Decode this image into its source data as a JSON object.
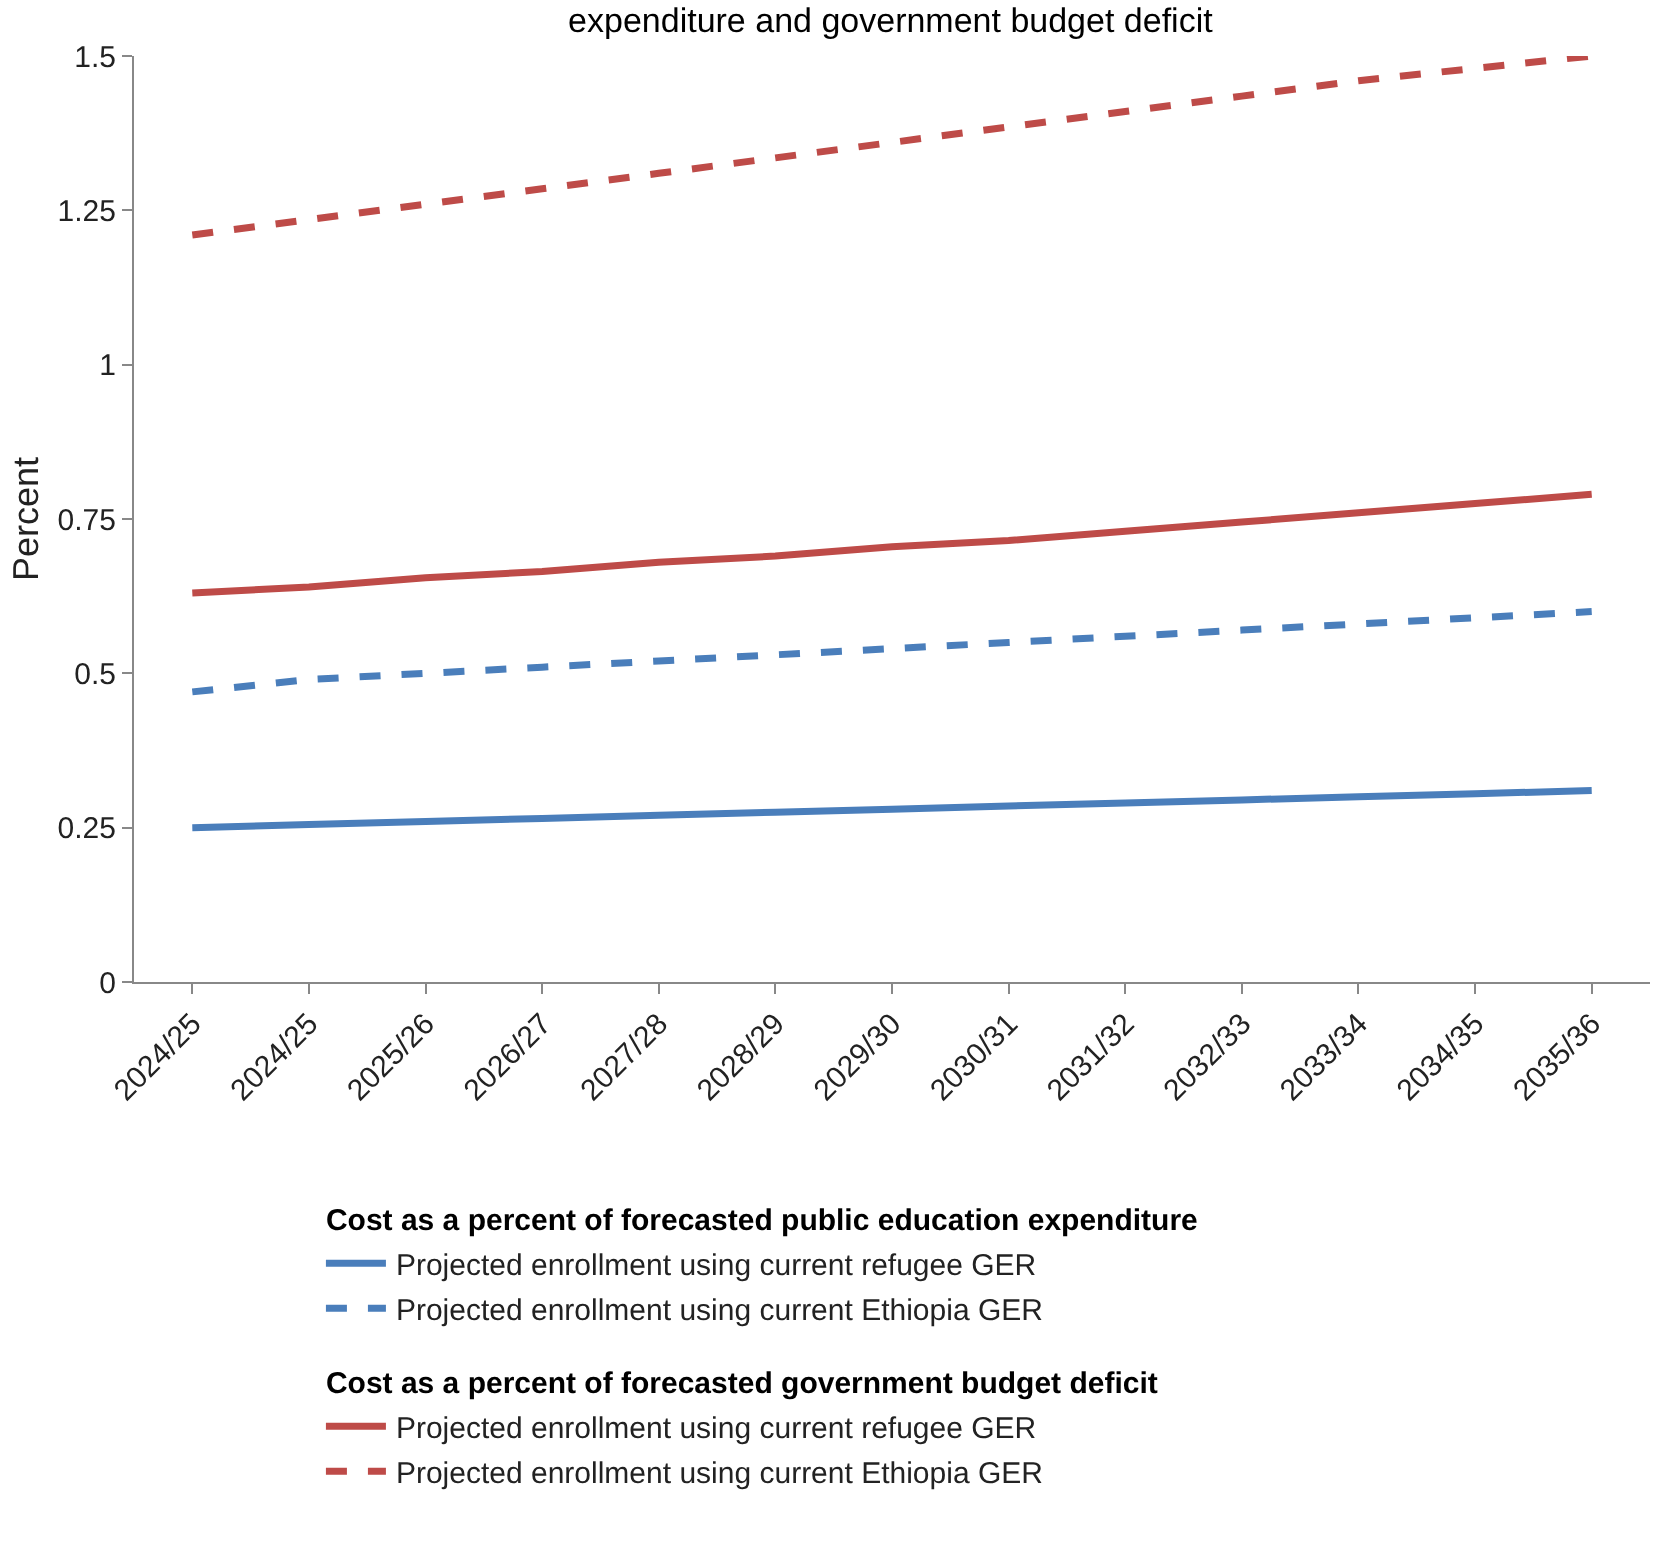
{
  "chart_data": {
    "type": "line",
    "title": "expenditure and government budget deficit",
    "ylabel": "Percent",
    "categories": [
      "2024/25",
      "2024/25",
      "2025/26",
      "2026/27",
      "2027/28",
      "2028/29",
      "2029/30",
      "2030/31",
      "2031/32",
      "2032/33",
      "2033/34",
      "2034/35",
      "2035/36"
    ],
    "series": [
      {
        "name": "Projected enrollment using current refugee GER",
        "color": "#4a7ebb",
        "line_style": "solid",
        "values": [
          0.25,
          0.255,
          0.26,
          0.265,
          0.27,
          0.275,
          0.28,
          0.285,
          0.29,
          0.295,
          0.3,
          0.305,
          0.31
        ]
      },
      {
        "name": "Projected enrollment using current Ethiopia GER",
        "color": "#4a7ebb",
        "line_style": "dashed",
        "values": [
          0.47,
          0.49,
          0.5,
          0.51,
          0.52,
          0.53,
          0.54,
          0.55,
          0.56,
          0.57,
          0.58,
          0.59,
          0.6
        ]
      },
      {
        "name": "Projected enrollment using current refugee GER",
        "color": "#be4b48",
        "line_style": "solid",
        "values": [
          0.63,
          0.64,
          0.655,
          0.665,
          0.68,
          0.69,
          0.705,
          0.715,
          0.73,
          0.745,
          0.76,
          0.775,
          0.79
        ]
      },
      {
        "name": "Projected enrollment using current Ethiopia GER",
        "color": "#be4b48",
        "line_style": "dashed",
        "values": [
          1.21,
          1.235,
          1.26,
          1.285,
          1.31,
          1.335,
          1.36,
          1.385,
          1.41,
          1.435,
          1.46,
          1.48,
          1.5
        ]
      }
    ],
    "annotations": [
      "Cost as a percent of forecasted public education expenditure",
      "Cost as a percent of forecasted government budget deficit"
    ],
    "ylim": [
      0,
      1.5
    ],
    "yticks": [
      0,
      0.25,
      0.5,
      0.75,
      1,
      1.25,
      1.5
    ],
    "legend": "bottom",
    "marker": "none"
  }
}
